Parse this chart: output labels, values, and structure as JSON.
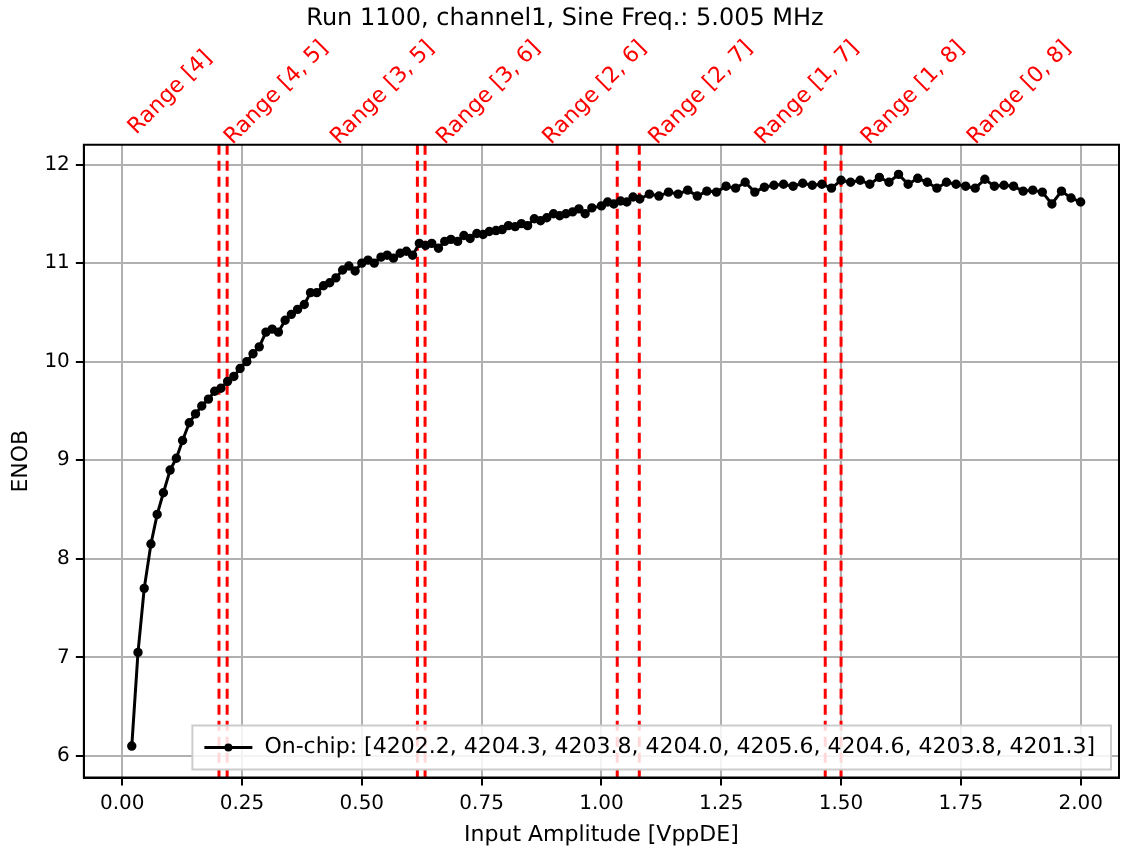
{
  "chart_data": {
    "type": "line",
    "title": "Run 1100, channel1, Sine Freq.: 5.005 MHz",
    "xlabel": "Input Amplitude [VppDE]",
    "ylabel": "ENOB",
    "xlim": [
      -0.08,
      2.08
    ],
    "ylim": [
      5.78,
      12.2
    ],
    "xticks": [
      {
        "value": 0,
        "label": "0.00"
      },
      {
        "value": 0.25,
        "label": "0.25"
      },
      {
        "value": 0.5,
        "label": "0.50"
      },
      {
        "value": 0.75,
        "label": "0.75"
      },
      {
        "value": 1,
        "label": "1.00"
      },
      {
        "value": 1.25,
        "label": "1.25"
      },
      {
        "value": 1.5,
        "label": "1.50"
      },
      {
        "value": 1.75,
        "label": "1.75"
      },
      {
        "value": 2,
        "label": "2.00"
      }
    ],
    "yticks": [
      6,
      7,
      8,
      9,
      10,
      11,
      12
    ],
    "grid": true,
    "legend": "bottom right",
    "marker": "circle",
    "line_style": "solid",
    "series": [
      {
        "name": "On-chip: [4202.2, 4204.3, 4203.8, 4204.0, 4205.6, 4204.6, 4203.8, 4201.3]",
        "color": "#000000",
        "x": [
          0.02,
          0.033,
          0.046,
          0.06,
          0.073,
          0.086,
          0.1,
          0.113,
          0.126,
          0.14,
          0.153,
          0.166,
          0.18,
          0.193,
          0.206,
          0.22,
          0.233,
          0.246,
          0.26,
          0.273,
          0.286,
          0.3,
          0.313,
          0.326,
          0.34,
          0.353,
          0.366,
          0.38,
          0.393,
          0.406,
          0.42,
          0.433,
          0.446,
          0.46,
          0.473,
          0.486,
          0.5,
          0.513,
          0.526,
          0.54,
          0.553,
          0.566,
          0.58,
          0.593,
          0.606,
          0.62,
          0.633,
          0.646,
          0.66,
          0.673,
          0.686,
          0.7,
          0.713,
          0.726,
          0.74,
          0.753,
          0.766,
          0.78,
          0.793,
          0.806,
          0.82,
          0.833,
          0.846,
          0.86,
          0.873,
          0.886,
          0.9,
          0.913,
          0.926,
          0.94,
          0.953,
          0.966,
          0.98,
          1.0,
          1.013,
          1.026,
          1.04,
          1.053,
          1.066,
          1.08,
          1.1,
          1.12,
          1.14,
          1.16,
          1.18,
          1.2,
          1.22,
          1.24,
          1.26,
          1.28,
          1.3,
          1.32,
          1.34,
          1.36,
          1.38,
          1.4,
          1.42,
          1.44,
          1.46,
          1.48,
          1.5,
          1.52,
          1.54,
          1.56,
          1.58,
          1.6,
          1.62,
          1.64,
          1.66,
          1.68,
          1.7,
          1.72,
          1.74,
          1.76,
          1.78,
          1.8,
          1.82,
          1.84,
          1.86,
          1.88,
          1.9,
          1.92,
          1.94,
          1.96,
          1.98,
          2.0
        ],
        "values": [
          6.1,
          7.05,
          7.7,
          8.15,
          8.45,
          8.67,
          8.9,
          9.02,
          9.2,
          9.38,
          9.47,
          9.55,
          9.62,
          9.7,
          9.73,
          9.8,
          9.85,
          9.93,
          10.0,
          10.08,
          10.15,
          10.3,
          10.33,
          10.3,
          10.42,
          10.48,
          10.53,
          10.58,
          10.7,
          10.7,
          10.77,
          10.8,
          10.85,
          10.93,
          10.97,
          10.92,
          11.0,
          11.03,
          11.0,
          11.06,
          11.08,
          11.05,
          11.1,
          11.12,
          11.08,
          11.2,
          11.18,
          11.2,
          11.15,
          11.22,
          11.24,
          11.22,
          11.28,
          11.25,
          11.3,
          11.29,
          11.32,
          11.33,
          11.34,
          11.38,
          11.37,
          11.4,
          11.38,
          11.45,
          11.43,
          11.46,
          11.5,
          11.48,
          11.5,
          11.52,
          11.55,
          11.5,
          11.56,
          11.58,
          11.62,
          11.6,
          11.63,
          11.62,
          11.67,
          11.65,
          11.7,
          11.68,
          11.72,
          11.7,
          11.74,
          11.68,
          11.73,
          11.72,
          11.78,
          11.76,
          11.82,
          11.72,
          11.77,
          11.79,
          11.8,
          11.78,
          11.81,
          11.79,
          11.8,
          11.76,
          11.84,
          11.82,
          11.84,
          11.8,
          11.87,
          11.82,
          11.9,
          11.8,
          11.86,
          11.82,
          11.76,
          11.82,
          11.8,
          11.78,
          11.76,
          11.85,
          11.78,
          11.79,
          11.78,
          11.73,
          11.74,
          11.72,
          11.6,
          11.73,
          11.66,
          11.62
        ]
      }
    ],
    "ref_lines": [
      {
        "axis": "x",
        "value": 0.202,
        "color": "#ff0000",
        "line_style": "dashed"
      },
      {
        "axis": "x",
        "value": 0.219,
        "color": "#ff0000",
        "line_style": "dashed"
      },
      {
        "axis": "x",
        "value": 0.616,
        "color": "#ff0000",
        "line_style": "dashed"
      },
      {
        "axis": "x",
        "value": 0.632,
        "color": "#ff0000",
        "line_style": "dashed"
      },
      {
        "axis": "x",
        "value": 1.033,
        "color": "#ff0000",
        "line_style": "dashed"
      },
      {
        "axis": "x",
        "value": 1.079,
        "color": "#ff0000",
        "line_style": "dashed"
      },
      {
        "axis": "x",
        "value": 1.467,
        "color": "#ff0000",
        "line_style": "dashed"
      },
      {
        "axis": "x",
        "value": 1.5,
        "color": "#ff0000",
        "line_style": "dashed"
      }
    ],
    "annotations": [
      "Range [4]",
      "Range [4, 5]",
      "Range [3, 5]",
      "Range [3, 6]",
      "Range [2, 6]",
      "Range [2, 7]",
      "Range [1, 7]",
      "Range [1, 8]",
      "Range [0, 8]"
    ]
  }
}
